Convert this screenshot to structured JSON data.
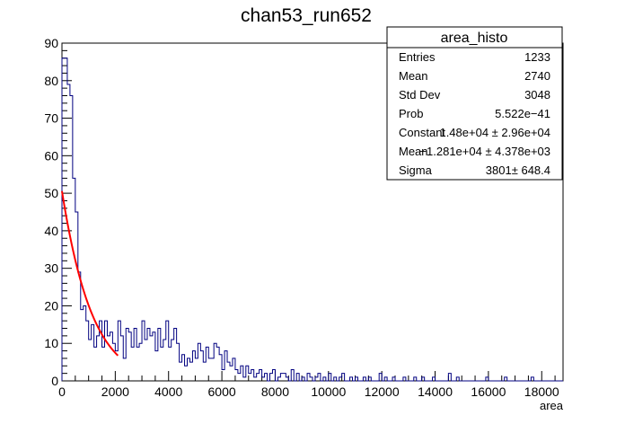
{
  "chart_data": {
    "type": "bar",
    "title": "chan53_run652",
    "xlabel": "area",
    "ylabel": "",
    "xlim": [
      0,
      18800
    ],
    "ylim": [
      0,
      90
    ],
    "bin_width": 100,
    "x_ticks": [
      0,
      2000,
      4000,
      6000,
      8000,
      10000,
      12000,
      14000,
      16000,
      18000
    ],
    "y_ticks": [
      0,
      10,
      20,
      30,
      40,
      50,
      60,
      70,
      80,
      90
    ],
    "series": [
      {
        "x": [
          0,
          100,
          200,
          300,
          400,
          500,
          600,
          700,
          800,
          900,
          1000,
          1100,
          1200,
          1300,
          1400,
          1500,
          1600,
          1700,
          1800,
          1900,
          2000,
          2100,
          2200,
          2300,
          2400,
          2500,
          2600,
          2700,
          2800,
          2900,
          3000,
          3100,
          3200,
          3300,
          3400,
          3500,
          3600,
          3700,
          3800,
          3900,
          4000,
          4100,
          4200,
          4300,
          4400,
          4500,
          4600,
          4700,
          4800,
          4900,
          5000,
          5100,
          5200,
          5300,
          5400,
          5500,
          5600,
          5700,
          5800,
          5900,
          6000,
          6100,
          6200,
          6300,
          6400,
          6500,
          6600,
          6700,
          6800,
          6900,
          7000,
          7100,
          7200,
          7300,
          7400,
          7500,
          7600,
          7700,
          7800,
          7900,
          8000,
          8100,
          8200,
          8300,
          8400,
          8500,
          8600,
          8700,
          8800,
          8900,
          9000,
          9100,
          9200,
          9300,
          9400,
          9500,
          9600,
          9700,
          9800,
          9900,
          10000,
          10100,
          10200,
          10300,
          10400,
          10500,
          10600,
          10700,
          10800,
          10900,
          11000,
          11100,
          11200,
          11300,
          11400,
          11500,
          11600,
          11700,
          11800,
          11900,
          12000,
          12100,
          12200,
          12300,
          12400,
          12500,
          12600,
          12700,
          12800,
          12900,
          13000,
          13100,
          13200,
          13300,
          13400,
          13500,
          13600,
          13700,
          13800,
          13900,
          14000,
          14100,
          14200,
          14300,
          14400,
          14500,
          14600,
          14700,
          14800,
          14900,
          15000,
          15100,
          15200,
          15300,
          15400,
          15500,
          15600,
          15700,
          15800,
          15900,
          16000,
          16100,
          16200,
          16300,
          16400,
          16500,
          16600,
          16700,
          16800,
          16900,
          17000,
          17100,
          17200,
          17300,
          17400,
          17500,
          17600,
          17700,
          17800,
          17900,
          18000,
          18100,
          18200,
          18300,
          18400,
          18500,
          18600,
          18700
        ],
        "values": [
          86,
          86,
          79,
          76,
          54,
          45,
          29,
          19,
          20,
          16,
          11,
          15,
          9,
          12,
          16,
          9,
          16,
          12,
          13,
          10,
          8,
          16,
          12,
          6,
          14,
          13,
          9,
          14,
          9,
          10,
          16,
          11,
          14,
          12,
          13,
          8,
          14,
          9,
          11,
          16,
          9,
          11,
          14,
          10,
          5,
          7,
          4,
          6,
          5,
          8,
          6,
          10,
          8,
          5,
          9,
          6,
          6,
          10,
          9,
          7,
          3,
          8,
          5,
          4,
          6,
          3,
          2,
          4,
          1,
          4,
          2,
          3,
          1,
          2,
          3,
          1,
          2,
          0,
          2,
          3,
          0,
          1,
          2,
          2,
          1,
          0,
          3,
          0,
          2,
          0,
          1,
          0,
          2,
          1,
          0,
          1,
          2,
          0,
          1,
          0,
          2,
          0,
          1,
          0,
          1,
          2,
          0,
          0,
          1,
          0,
          1,
          0,
          0,
          1,
          0,
          1,
          0,
          0,
          0,
          2,
          0,
          1,
          0,
          0,
          1,
          0,
          0,
          0,
          1,
          0,
          0,
          0,
          1,
          0,
          0,
          1,
          0,
          0,
          0,
          1,
          0,
          0,
          0,
          0,
          0,
          2,
          0,
          0,
          1,
          0,
          0,
          0,
          0,
          0,
          0,
          0,
          0,
          0,
          0,
          1,
          0,
          0,
          0,
          0,
          0,
          0,
          1,
          0,
          0,
          0,
          0,
          0,
          0,
          0,
          0,
          0,
          1,
          0,
          0,
          0,
          0,
          0,
          0,
          0,
          0,
          0,
          0,
          0
        ]
      }
    ],
    "fit_curve": {
      "function": "gaus",
      "constant": 14800,
      "mean": -12810,
      "sigma": 3801,
      "x_range": [
        0,
        2100
      ],
      "color": "#ff0000"
    },
    "stats_box": {
      "name": "area_histo",
      "rows": [
        {
          "label": "Entries",
          "value": "1233"
        },
        {
          "label": "Mean",
          "value": "2740"
        },
        {
          "label": "Std Dev",
          "value": "3048"
        },
        {
          "label": "Prob",
          "value": "5.522e−41"
        },
        {
          "label": "Constant",
          "value": "1.48e+04 ± 2.96e+04"
        },
        {
          "label": "Mean",
          "value": "−1.281e+04 ± 4.378e+03"
        },
        {
          "label": "Sigma",
          "value": "3801± 648.4"
        }
      ]
    },
    "colors": {
      "histogram": "#000080",
      "fit": "#ff0000",
      "frame": "#000000"
    },
    "grid": false,
    "legend_position": "top-right"
  }
}
